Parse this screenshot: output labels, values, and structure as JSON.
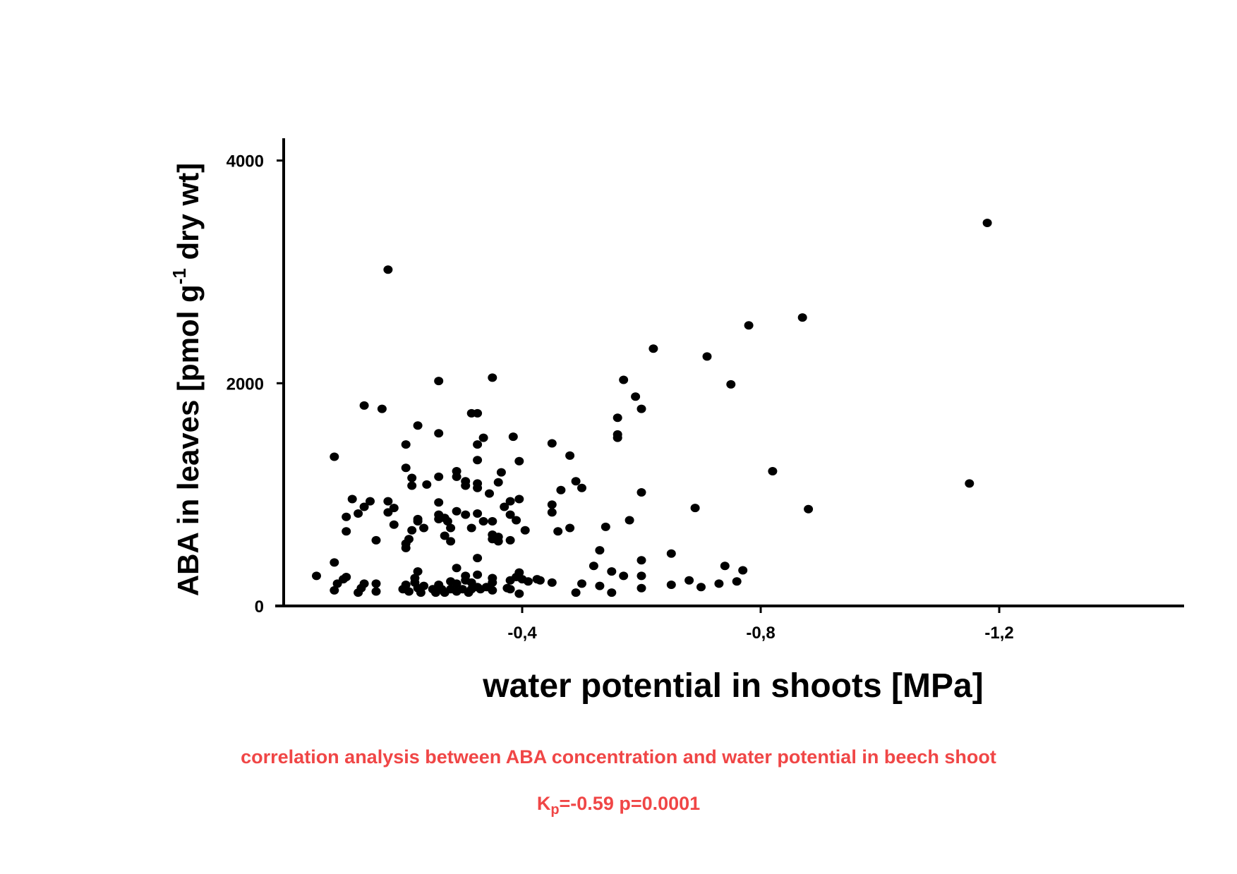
{
  "chart_data": {
    "type": "scatter",
    "xlabel": "water potential in shoots [MPa]",
    "ylabel_parts": {
      "before": "ABA in leaves [pmol g",
      "superscript": "-1",
      "after": " dry wt]"
    },
    "x_axis": {
      "reversed": true,
      "range": [
        0.0,
        -1.51
      ],
      "ticks": [
        -0.4,
        -0.8,
        -1.2
      ],
      "tick_labels": [
        "-0,4",
        "-0,8",
        "-1,2"
      ]
    },
    "y_axis": {
      "range": [
        0,
        4200
      ],
      "ticks": [
        0,
        2000,
        4000
      ],
      "tick_labels": [
        "0",
        "2000",
        "4000"
      ]
    },
    "grid": false,
    "marker_color": "#000000",
    "points": [
      [
        -0.055,
        270
      ],
      [
        -0.085,
        1340
      ],
      [
        -0.085,
        390
      ],
      [
        -0.085,
        140
      ],
      [
        -0.09,
        200
      ],
      [
        -0.1,
        240
      ],
      [
        -0.105,
        260
      ],
      [
        -0.105,
        670
      ],
      [
        -0.105,
        800
      ],
      [
        -0.115,
        960
      ],
      [
        -0.125,
        830
      ],
      [
        -0.125,
        120
      ],
      [
        -0.13,
        160
      ],
      [
        -0.135,
        890
      ],
      [
        -0.135,
        1800
      ],
      [
        -0.135,
        200
      ],
      [
        -0.145,
        940
      ],
      [
        -0.155,
        590
      ],
      [
        -0.155,
        200
      ],
      [
        -0.155,
        130
      ],
      [
        -0.165,
        1770
      ],
      [
        -0.175,
        3020
      ],
      [
        -0.175,
        940
      ],
      [
        -0.175,
        840
      ],
      [
        -0.185,
        880
      ],
      [
        -0.185,
        730
      ],
      [
        -0.2,
        150
      ],
      [
        -0.205,
        1450
      ],
      [
        -0.205,
        1240
      ],
      [
        -0.205,
        560
      ],
      [
        -0.205,
        520
      ],
      [
        -0.205,
        190
      ],
      [
        -0.21,
        600
      ],
      [
        -0.21,
        130
      ],
      [
        -0.215,
        1150
      ],
      [
        -0.215,
        1080
      ],
      [
        -0.215,
        680
      ],
      [
        -0.22,
        250
      ],
      [
        -0.22,
        210
      ],
      [
        -0.225,
        1620
      ],
      [
        -0.225,
        780
      ],
      [
        -0.225,
        760
      ],
      [
        -0.225,
        310
      ],
      [
        -0.225,
        160
      ],
      [
        -0.23,
        120
      ],
      [
        -0.235,
        700
      ],
      [
        -0.235,
        180
      ],
      [
        -0.24,
        1090
      ],
      [
        -0.25,
        150
      ],
      [
        -0.255,
        120
      ],
      [
        -0.26,
        2020
      ],
      [
        -0.26,
        1550
      ],
      [
        -0.26,
        1160
      ],
      [
        -0.26,
        930
      ],
      [
        -0.26,
        820
      ],
      [
        -0.26,
        780
      ],
      [
        -0.26,
        190
      ],
      [
        -0.265,
        150
      ],
      [
        -0.27,
        790
      ],
      [
        -0.27,
        630
      ],
      [
        -0.27,
        120
      ],
      [
        -0.275,
        760
      ],
      [
        -0.28,
        700
      ],
      [
        -0.28,
        580
      ],
      [
        -0.28,
        220
      ],
      [
        -0.28,
        150
      ],
      [
        -0.29,
        1210
      ],
      [
        -0.29,
        1160
      ],
      [
        -0.29,
        850
      ],
      [
        -0.29,
        340
      ],
      [
        -0.29,
        200
      ],
      [
        -0.29,
        130
      ],
      [
        -0.3,
        150
      ],
      [
        -0.305,
        1120
      ],
      [
        -0.305,
        1080
      ],
      [
        -0.305,
        820
      ],
      [
        -0.305,
        270
      ],
      [
        -0.305,
        230
      ],
      [
        -0.31,
        120
      ],
      [
        -0.315,
        1730
      ],
      [
        -0.315,
        700
      ],
      [
        -0.315,
        210
      ],
      [
        -0.315,
        150
      ],
      [
        -0.325,
        1730
      ],
      [
        -0.325,
        1450
      ],
      [
        -0.325,
        1310
      ],
      [
        -0.325,
        1100
      ],
      [
        -0.325,
        1060
      ],
      [
        -0.325,
        830
      ],
      [
        -0.325,
        430
      ],
      [
        -0.325,
        280
      ],
      [
        -0.325,
        170
      ],
      [
        -0.33,
        150
      ],
      [
        -0.335,
        1510
      ],
      [
        -0.335,
        760
      ],
      [
        -0.34,
        170
      ],
      [
        -0.345,
        1010
      ],
      [
        -0.35,
        2050
      ],
      [
        -0.35,
        760
      ],
      [
        -0.35,
        640
      ],
      [
        -0.35,
        600
      ],
      [
        -0.35,
        250
      ],
      [
        -0.35,
        210
      ],
      [
        -0.35,
        140
      ],
      [
        -0.36,
        1110
      ],
      [
        -0.36,
        620
      ],
      [
        -0.36,
        580
      ],
      [
        -0.365,
        1200
      ],
      [
        -0.37,
        890
      ],
      [
        -0.375,
        160
      ],
      [
        -0.38,
        940
      ],
      [
        -0.38,
        820
      ],
      [
        -0.38,
        590
      ],
      [
        -0.38,
        230
      ],
      [
        -0.38,
        150
      ],
      [
        -0.385,
        1520
      ],
      [
        -0.39,
        770
      ],
      [
        -0.39,
        260
      ],
      [
        -0.395,
        1300
      ],
      [
        -0.395,
        960
      ],
      [
        -0.395,
        300
      ],
      [
        -0.395,
        110
      ],
      [
        -0.4,
        240
      ],
      [
        -0.405,
        680
      ],
      [
        -0.41,
        220
      ],
      [
        -0.425,
        240
      ],
      [
        -0.43,
        230
      ],
      [
        -0.45,
        1460
      ],
      [
        -0.45,
        910
      ],
      [
        -0.45,
        840
      ],
      [
        -0.45,
        210
      ],
      [
        -0.46,
        670
      ],
      [
        -0.465,
        1040
      ],
      [
        -0.48,
        1350
      ],
      [
        -0.48,
        700
      ],
      [
        -0.49,
        1120
      ],
      [
        -0.49,
        120
      ],
      [
        -0.5,
        1060
      ],
      [
        -0.5,
        200
      ],
      [
        -0.52,
        360
      ],
      [
        -0.53,
        500
      ],
      [
        -0.53,
        180
      ],
      [
        -0.54,
        710
      ],
      [
        -0.55,
        310
      ],
      [
        -0.55,
        120
      ],
      [
        -0.56,
        1690
      ],
      [
        -0.56,
        1540
      ],
      [
        -0.56,
        1510
      ],
      [
        -0.57,
        2030
      ],
      [
        -0.57,
        270
      ],
      [
        -0.58,
        770
      ],
      [
        -0.59,
        1880
      ],
      [
        -0.6,
        1770
      ],
      [
        -0.6,
        1020
      ],
      [
        -0.6,
        410
      ],
      [
        -0.6,
        270
      ],
      [
        -0.6,
        160
      ],
      [
        -0.62,
        2310
      ],
      [
        -0.65,
        470
      ],
      [
        -0.65,
        190
      ],
      [
        -0.68,
        230
      ],
      [
        -0.69,
        880
      ],
      [
        -0.7,
        170
      ],
      [
        -0.71,
        2240
      ],
      [
        -0.73,
        200
      ],
      [
        -0.74,
        360
      ],
      [
        -0.75,
        1990
      ],
      [
        -0.76,
        220
      ],
      [
        -0.77,
        320
      ],
      [
        -0.78,
        2520
      ],
      [
        -0.82,
        1210
      ],
      [
        -0.87,
        2590
      ],
      [
        -0.88,
        870
      ],
      [
        -1.15,
        1100
      ],
      [
        -1.18,
        3440
      ]
    ]
  },
  "caption": "correlation analysis between ABA concentration and water potential in beech shoot",
  "stats": {
    "k_main": "K",
    "k_sub": "p",
    "rest": "=-0.59  p=0.0001"
  }
}
